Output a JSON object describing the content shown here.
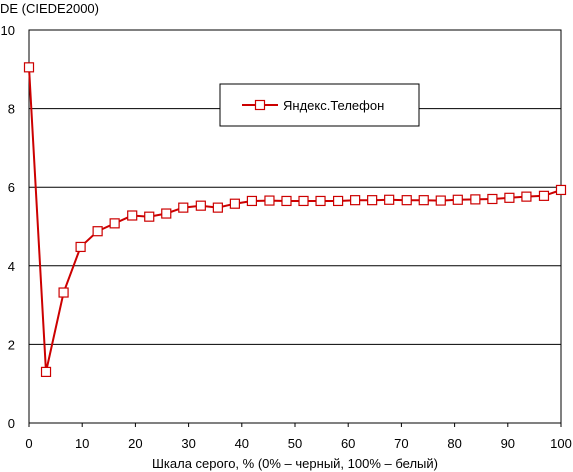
{
  "chart_data": {
    "type": "line",
    "ylabel": "DE (CIEDE2000)",
    "xlabel": "Шкала серого, % (0% – черный, 100% – белый)",
    "xlim": [
      0,
      100
    ],
    "ylim": [
      0,
      10
    ],
    "xticks": [
      0,
      10,
      20,
      30,
      40,
      50,
      60,
      70,
      80,
      90,
      100
    ],
    "yticks": [
      0,
      2,
      4,
      6,
      8,
      10
    ],
    "grid": "horizontal",
    "legend_position": "top-center",
    "series": [
      {
        "name": "Яндекс.Телефон",
        "color": "#cc0000",
        "marker": "open-square",
        "x": [
          0,
          3.2,
          6.5,
          9.7,
          12.9,
          16.1,
          19.4,
          22.6,
          25.8,
          29.0,
          32.3,
          35.5,
          38.7,
          41.9,
          45.2,
          48.4,
          51.6,
          54.8,
          58.1,
          61.3,
          64.5,
          67.7,
          71.0,
          74.2,
          77.4,
          80.6,
          83.9,
          87.1,
          90.3,
          93.5,
          96.8,
          100
        ],
        "y": [
          9.05,
          1.3,
          3.32,
          4.48,
          4.88,
          5.08,
          5.28,
          5.25,
          5.33,
          5.48,
          5.53,
          5.48,
          5.58,
          5.65,
          5.66,
          5.65,
          5.65,
          5.65,
          5.65,
          5.67,
          5.67,
          5.68,
          5.67,
          5.67,
          5.66,
          5.68,
          5.69,
          5.7,
          5.73,
          5.76,
          5.78,
          5.93
        ]
      }
    ]
  }
}
